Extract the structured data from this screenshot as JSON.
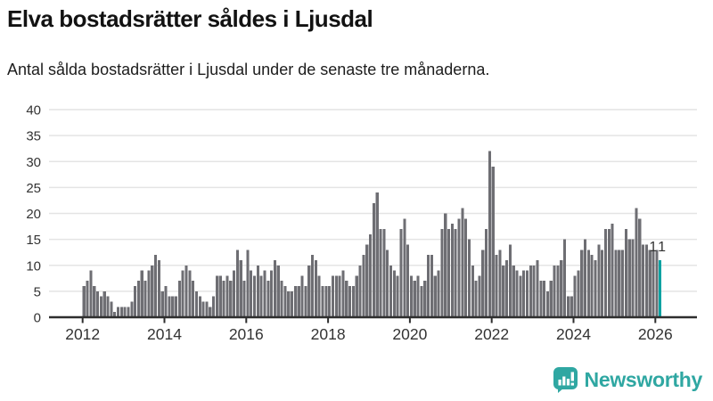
{
  "header": {
    "title": "Elva bostadsrätter såldes i Ljusdal",
    "subtitle": "Antal sålda bostadsrätter i Ljusdal under de senaste tre månaderna."
  },
  "logo": {
    "text": "Newsworthy"
  },
  "colors": {
    "bar": "#6e6e73",
    "highlight": "#00a2a2",
    "grid": "#e4e4e4",
    "axis": "#2e2e2e",
    "label": "#333333",
    "logo": "#2fa7a2"
  },
  "chart_data": {
    "type": "bar",
    "title": "Elva bostadsrätter såldes i Ljusdal",
    "subtitle": "Antal sålda bostadsrätter i Ljusdal under de senaste tre månaderna.",
    "xlabel": "",
    "ylabel": "",
    "x_start": "2012-01",
    "x_end": "2026-02",
    "x_frequency": "monthly",
    "x_tick_labels": [
      "2012",
      "2014",
      "2016",
      "2018",
      "2020",
      "2022",
      "2024",
      "2026"
    ],
    "y_ticks": [
      0,
      5,
      10,
      15,
      20,
      25,
      30,
      35,
      40
    ],
    "ylim": [
      0,
      40
    ],
    "grid": true,
    "legend": "none",
    "highlight": {
      "index": 169,
      "label": "11",
      "month": "2026-02"
    },
    "values": [
      6,
      7,
      9,
      6,
      5,
      4,
      5,
      4,
      3,
      1,
      2,
      2,
      2,
      2,
      3,
      6,
      7,
      9,
      7,
      9,
      10,
      12,
      11,
      5,
      6,
      4,
      4,
      4,
      7,
      9,
      10,
      9,
      7,
      5,
      4,
      3,
      3,
      2,
      4,
      8,
      8,
      7,
      8,
      7,
      9,
      13,
      11,
      7,
      13,
      9,
      8,
      10,
      8,
      9,
      7,
      9,
      11,
      10,
      7,
      6,
      5,
      5,
      6,
      6,
      8,
      6,
      10,
      12,
      11,
      8,
      6,
      6,
      6,
      8,
      8,
      8,
      9,
      7,
      6,
      6,
      8,
      10,
      12,
      14,
      16,
      22,
      24,
      17,
      17,
      13,
      10,
      9,
      8,
      17,
      19,
      14,
      8,
      7,
      8,
      6,
      7,
      12,
      12,
      8,
      9,
      17,
      20,
      17,
      18,
      17,
      19,
      21,
      19,
      15,
      10,
      7,
      8,
      13,
      17,
      32,
      29,
      12,
      13,
      10,
      11,
      14,
      10,
      9,
      8,
      9,
      9,
      10,
      10,
      11,
      7,
      7,
      5,
      7,
      10,
      10,
      11,
      15,
      4,
      4,
      8,
      9,
      13,
      15,
      13,
      12,
      11,
      14,
      13,
      17,
      17,
      18,
      13,
      13,
      13,
      17,
      15,
      15,
      21,
      19,
      14,
      14,
      13,
      13,
      13,
      11
    ]
  }
}
